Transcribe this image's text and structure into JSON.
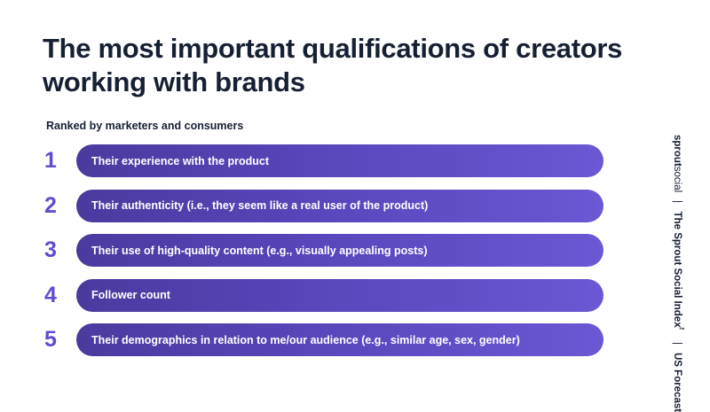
{
  "title": "The most important qualifications of creators working with brands",
  "subtitle": "Ranked by marketers and consumers",
  "items": [
    {
      "rank": "1",
      "label": "Their experience with the product"
    },
    {
      "rank": "2",
      "label": "Their authenticity (i.e., they seem like a real user of the product)"
    },
    {
      "rank": "3",
      "label": "Their use of high-quality content (e.g., visually appealing posts)"
    },
    {
      "rank": "4",
      "label": "Follower count"
    },
    {
      "rank": "5",
      "label": "Their demographics in relation to me/our audience (e.g., similar age, sex, gender)"
    }
  ],
  "sidebar": {
    "brand_part1": "sprout",
    "brand_part2": "social",
    "separator": "|",
    "report_title": "The Sprout Social Index",
    "trademark": "™",
    "region": "US Forecast"
  },
  "colors": {
    "heading": "#162033",
    "accent": "#5d4dd1",
    "pill_start": "#4b3a9e",
    "pill_end": "#6a58d4"
  }
}
